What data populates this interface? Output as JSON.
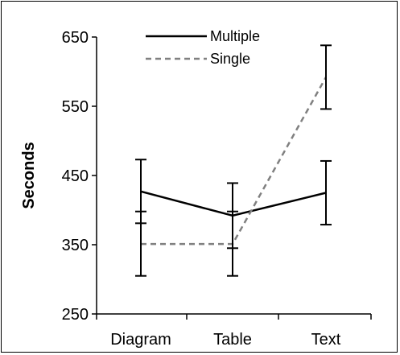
{
  "chart_data": {
    "type": "line",
    "ylabel": "Seconds",
    "xlabel": "",
    "ylim": [
      250,
      650
    ],
    "yticks": [
      250,
      350,
      450,
      550,
      650
    ],
    "categories": [
      "Diagram",
      "Table",
      "Text"
    ],
    "legend_position": "top-center",
    "grid": false,
    "series": [
      {
        "name": "Multiple",
        "style": "solid",
        "color": "#000000",
        "values": [
          427,
          392,
          425
        ],
        "error_low": [
          381,
          345,
          379
        ],
        "error_high": [
          473,
          439,
          471
        ]
      },
      {
        "name": "Single",
        "style": "dashed",
        "color": "#808080",
        "values": [
          351,
          351,
          592
        ],
        "error_low": [
          305,
          305,
          546
        ],
        "error_high": [
          398,
          398,
          638
        ]
      }
    ]
  }
}
